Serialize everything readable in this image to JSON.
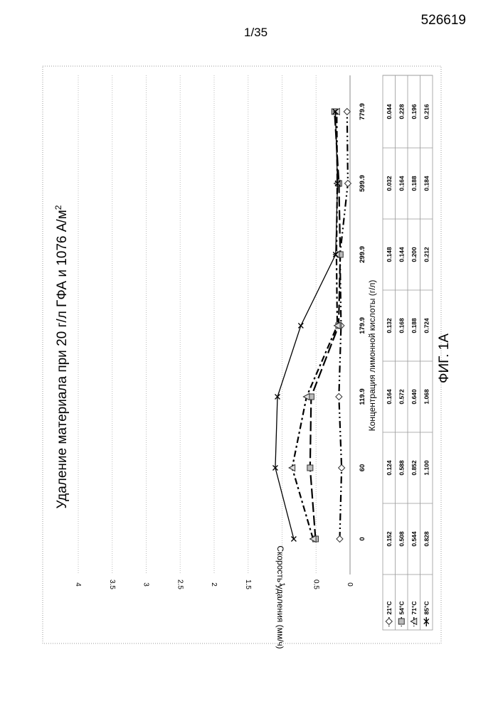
{
  "header": {
    "document_number": "526619",
    "page_number": "1/35"
  },
  "figure_caption": "ФИГ. 1A",
  "chart_data": {
    "type": "line",
    "title": "Удаление материала при 20 г/л ГФА и 1076 А/м",
    "title_superscript": "2",
    "xlabel": "Концентрация лимонной кислоты (г/л)",
    "ylabel": "Скорость удаления (мм/ч)",
    "categories": [
      "0",
      "60",
      "119.9",
      "179.9",
      "299.9",
      "599.9",
      "779.9"
    ],
    "ylim": [
      0,
      4
    ],
    "yticks": [
      "0",
      "0.5",
      "1",
      "1.5",
      "2",
      "2.5",
      "3",
      "3.5",
      "4"
    ],
    "grid": true,
    "legend": "data-table-left",
    "series": [
      {
        "name": "21°C",
        "values": [
          0.152,
          0.124,
          0.164,
          0.132,
          0.148,
          0.032,
          0.044
        ],
        "labels": [
          "0.152",
          "0.124",
          "0.164",
          "0.132",
          "0.148",
          "0.032",
          "0.044"
        ],
        "marker": "diamond",
        "dash": "10 4 2 4 2 4"
      },
      {
        "name": "54°C",
        "values": [
          0.508,
          0.588,
          0.572,
          0.168,
          0.144,
          0.164,
          0.228
        ],
        "labels": [
          "0.508",
          "0.588",
          "0.572",
          "0.168",
          "0.144",
          "0.164",
          "0.228"
        ],
        "marker": "square",
        "dash": "14 5"
      },
      {
        "name": "71°C",
        "values": [
          0.544,
          0.852,
          0.64,
          0.188,
          0.2,
          0.188,
          0.196
        ],
        "labels": [
          "0.544",
          "0.852",
          "0.640",
          "0.188",
          "0.200",
          "0.188",
          "0.196"
        ],
        "marker": "triangle",
        "dash": "9 4 3 4"
      },
      {
        "name": "85°C",
        "values": [
          0.828,
          1.1,
          1.068,
          0.724,
          0.212,
          0.184,
          0.216
        ],
        "labels": [
          "0.828",
          "1.100",
          "1.068",
          "0.724",
          "0.212",
          "0.184",
          "0.216"
        ],
        "marker": "x",
        "dash": ""
      }
    ]
  }
}
